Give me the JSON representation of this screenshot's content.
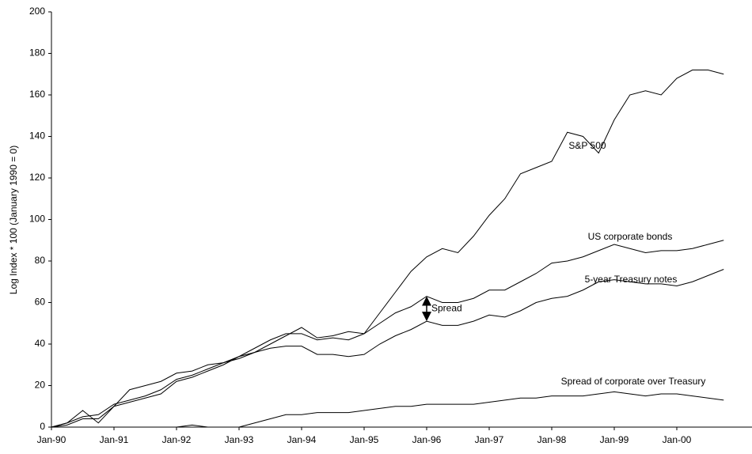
{
  "chart_data": {
    "type": "line",
    "y_label": "Log Index * 100 (January 1990 = 0)",
    "categories": [
      "Jan-90",
      null,
      null,
      null,
      "Jan-91",
      null,
      null,
      null,
      "Jan-92",
      null,
      null,
      null,
      "Jan-93",
      null,
      null,
      null,
      "Jan-94",
      null,
      null,
      null,
      "Jan-95",
      null,
      null,
      null,
      "Jan-96",
      null,
      null,
      null,
      "Jan-97",
      null,
      null,
      null,
      "Jan-98",
      null,
      null,
      null,
      "Jan-99",
      null,
      null,
      null,
      "Jan-00",
      null,
      null,
      null
    ],
    "series": [
      {
        "name": "S&P 500",
        "color": "#000000",
        "values": [
          0,
          2,
          8,
          2,
          10,
          18,
          20,
          22,
          26,
          27,
          30,
          31,
          33,
          36,
          40,
          44,
          48,
          43,
          44,
          46,
          45,
          55,
          65,
          75,
          82,
          86,
          84,
          92,
          102,
          110,
          122,
          125,
          128,
          142,
          140,
          132,
          148,
          160,
          162,
          160,
          168,
          172,
          172,
          170
        ]
      },
      {
        "name": "US corporate bonds",
        "color": "#000000",
        "values": [
          0,
          1,
          4,
          4,
          10,
          12,
          14,
          16,
          22,
          24,
          27,
          30,
          34,
          38,
          42,
          45,
          45,
          42,
          43,
          42,
          45,
          50,
          55,
          58,
          63,
          60,
          60,
          62,
          66,
          66,
          70,
          74,
          79,
          80,
          82,
          85,
          88,
          86,
          84,
          85,
          85,
          86,
          88,
          90
        ]
      },
      {
        "name": "5-year Treasury notes",
        "color": "#000000",
        "values": [
          0,
          2,
          5,
          6,
          11,
          13,
          15,
          18,
          23,
          25,
          28,
          31,
          34,
          36,
          38,
          39,
          39,
          35,
          35,
          34,
          35,
          40,
          44,
          47,
          51,
          49,
          49,
          51,
          54,
          53,
          56,
          60,
          62,
          63,
          66,
          70,
          71,
          70,
          69,
          69,
          68,
          70,
          73,
          76
        ]
      },
      {
        "name": "Spread of corporate over Treasury",
        "color": "#000000",
        "values": [
          0,
          0,
          0,
          0,
          0,
          0,
          0,
          0,
          0,
          1,
          0,
          0,
          0,
          2,
          4,
          6,
          6,
          7,
          7,
          7,
          8,
          9,
          10,
          10,
          11,
          11,
          11,
          11,
          12,
          13,
          14,
          14,
          15,
          15,
          15,
          16,
          17,
          16,
          15,
          16,
          16,
          15,
          14,
          13
        ]
      }
    ],
    "annotations": [
      "Spread"
    ],
    "ylim": [
      0,
      200
    ],
    "yticks": [
      0,
      20,
      40,
      60,
      80,
      100,
      120,
      140,
      160,
      180,
      200
    ],
    "grid": false
  }
}
